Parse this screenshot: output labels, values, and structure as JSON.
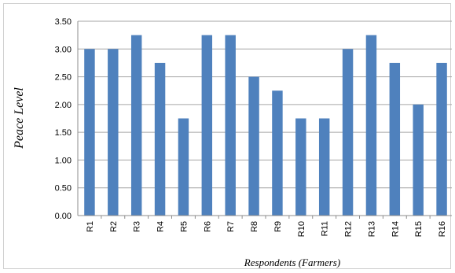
{
  "chart_data": {
    "type": "bar",
    "title": "",
    "xlabel": "Respondents (Farmers)",
    "ylabel": "Peace  Level",
    "categories": [
      "R1",
      "R2",
      "R3",
      "R4",
      "R5",
      "R6",
      "R7",
      "R8",
      "R9",
      "R10",
      "R11",
      "R12",
      "R13",
      "R14",
      "R15",
      "R16"
    ],
    "values": [
      3.0,
      3.0,
      3.25,
      2.75,
      1.75,
      3.25,
      3.25,
      2.5,
      2.25,
      1.75,
      1.75,
      3.0,
      3.25,
      2.75,
      2.0,
      2.75
    ],
    "ylim": [
      0,
      3.5
    ],
    "yticks": [
      "0.00",
      "0.50",
      "1.00",
      "1.50",
      "2.00",
      "2.50",
      "3.00",
      "3.50"
    ],
    "grid": true,
    "legend": "none",
    "bar_color": "#4f81bd",
    "grid_color": "#a6a6a6"
  }
}
